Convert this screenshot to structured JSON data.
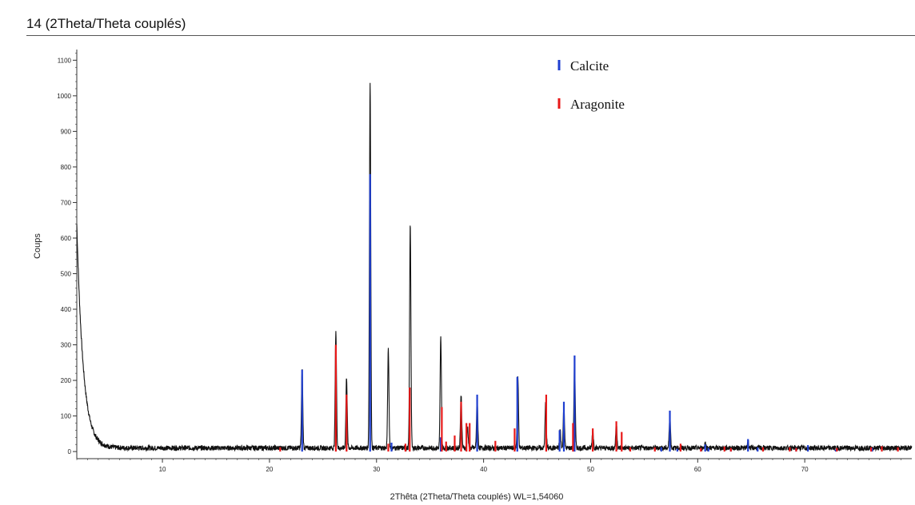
{
  "title": "14 (2Theta/Theta couplés)",
  "colors": {
    "profile": "#111111",
    "calcite": "#1f3fd0",
    "aragonite": "#e81818",
    "axis": "#333333"
  },
  "chart_data": {
    "type": "line",
    "title": "14 (2Theta/Theta couplés)",
    "xlabel": "2Thêta (2Theta/Theta couplés) WL=1,54060",
    "ylabel": "Coups",
    "xlim": [
      2,
      80
    ],
    "ylim": [
      -20,
      1130
    ],
    "xticks": [
      10,
      20,
      30,
      40,
      50,
      60,
      70
    ],
    "yticks": [
      0,
      100,
      200,
      300,
      400,
      500,
      600,
      700,
      800,
      900,
      1000,
      1100
    ],
    "grid": false,
    "legend_position": "top-right",
    "legend": [
      {
        "name": "Calcite",
        "color": "#1f3fd0"
      },
      {
        "name": "Aragonite",
        "color": "#e81818"
      }
    ],
    "profile": {
      "background": 10,
      "low_angle_start": 640,
      "peaks": [
        {
          "x": 23.05,
          "y": 230
        },
        {
          "x": 26.2,
          "y": 340
        },
        {
          "x": 27.2,
          "y": 210
        },
        {
          "x": 29.4,
          "y": 1040
        },
        {
          "x": 31.1,
          "y": 285
        },
        {
          "x": 33.15,
          "y": 640
        },
        {
          "x": 36.0,
          "y": 320
        },
        {
          "x": 37.9,
          "y": 160
        },
        {
          "x": 38.5,
          "y": 70
        },
        {
          "x": 39.4,
          "y": 150
        },
        {
          "x": 43.2,
          "y": 210
        },
        {
          "x": 45.8,
          "y": 140
        },
        {
          "x": 47.15,
          "y": 60
        },
        {
          "x": 47.5,
          "y": 130
        },
        {
          "x": 48.5,
          "y": 260
        },
        {
          "x": 50.2,
          "y": 60
        },
        {
          "x": 52.4,
          "y": 80
        },
        {
          "x": 57.4,
          "y": 100
        },
        {
          "x": 60.7,
          "y": 25
        },
        {
          "x": 64.7,
          "y": 30
        }
      ]
    },
    "series": [
      {
        "name": "Calcite",
        "x": [
          23.05,
          29.4,
          31.4,
          36.0,
          39.4,
          43.15,
          47.1,
          47.5,
          48.5,
          56.6,
          57.4,
          58.1,
          60.7,
          61.0,
          63.1,
          64.7,
          65.6,
          69.2,
          70.3,
          72.9,
          76.3
        ],
        "values": [
          230,
          780,
          25,
          40,
          160,
          210,
          60,
          140,
          270,
          12,
          115,
          8,
          20,
          10,
          8,
          35,
          12,
          10,
          18,
          6,
          10
        ]
      },
      {
        "name": "Aragonite",
        "x": [
          21.0,
          26.2,
          27.2,
          31.1,
          32.7,
          33.1,
          36.1,
          36.5,
          37.3,
          37.9,
          38.4,
          38.7,
          41.1,
          42.9,
          45.85,
          48.35,
          50.2,
          52.4,
          52.9,
          53.7,
          56.0,
          58.4,
          60.3,
          62.5,
          63.1,
          66.1,
          68.6,
          69.2,
          73.0,
          76.2,
          77.2,
          78.7
        ],
        "values": [
          12,
          300,
          160,
          22,
          22,
          180,
          125,
          28,
          45,
          140,
          80,
          80,
          30,
          65,
          160,
          80,
          65,
          85,
          55,
          12,
          12,
          22,
          10,
          14,
          10,
          12,
          12,
          10,
          10,
          12,
          15,
          12
        ]
      }
    ]
  }
}
